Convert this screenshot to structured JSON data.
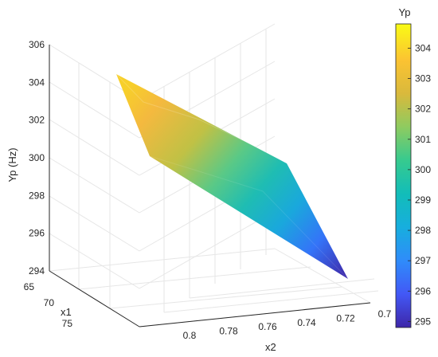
{
  "chart_data": {
    "type": "surface3d",
    "title": "",
    "xlabel": "x2",
    "ylabel": "x1",
    "zlabel": "Yp (Hz)",
    "colorbar_title": "Yp",
    "grid": true,
    "view": "3d-perspective",
    "x_ticks": [
      "0.8",
      "0.78",
      "0.76",
      "0.74",
      "0.72",
      "0.7"
    ],
    "y_ticks": [
      "65",
      "70",
      "75"
    ],
    "z_ticks": [
      "294",
      "296",
      "298",
      "300",
      "302",
      "304",
      "306"
    ],
    "colorbar_ticks": [
      "295",
      "296",
      "297",
      "298",
      "299",
      "300",
      "301",
      "302",
      "303",
      "304"
    ],
    "zlim": [
      294,
      306
    ],
    "clim": [
      294.8,
      304.8
    ],
    "colormap": [
      "#3e26a8",
      "#4258f6",
      "#2f8cfa",
      "#17aede",
      "#12bdb9",
      "#36ca8f",
      "#8ecb60",
      "#d9b93c",
      "#fbc332",
      "#f9fb15"
    ],
    "corners": [
      {
        "x2": 0.8,
        "x1": 65,
        "Yp": 304.0
      },
      {
        "x2": 0.8,
        "x1": 78,
        "Yp": 301.4
      },
      {
        "x2": 0.7,
        "x1": 65,
        "Yp": 299.8
      },
      {
        "x2": 0.7,
        "x1": 78,
        "Yp": 295.0
      }
    ]
  }
}
